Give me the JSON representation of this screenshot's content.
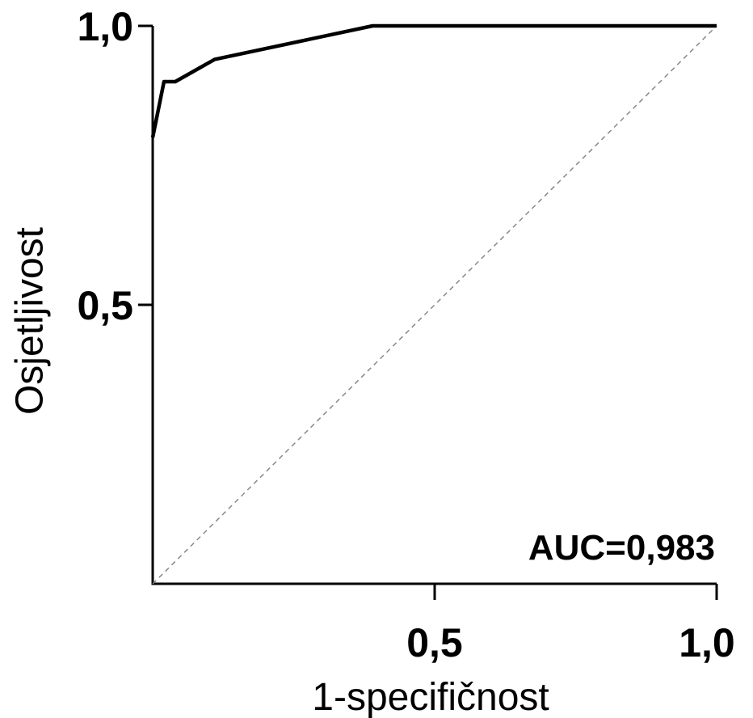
{
  "chart_data": {
    "type": "line",
    "xlabel": "1-specifičnost",
    "ylabel": "Osjetljivost",
    "xlim": [
      0,
      1
    ],
    "ylim": [
      0,
      1
    ],
    "x_ticks": [
      0.5,
      1.0
    ],
    "x_tick_labels": [
      "0,5",
      "1,0"
    ],
    "y_ticks": [
      0.5,
      1.0
    ],
    "y_tick_labels": [
      "0,5",
      "1,0"
    ],
    "grid": false,
    "annotation": "AUC=0,983",
    "series": [
      {
        "x": [
          0.0,
          0.02,
          0.04,
          0.11,
          0.39,
          1.0
        ],
        "y": [
          0.8,
          0.9,
          0.9,
          0.94,
          1.0,
          1.0
        ]
      }
    ],
    "reference_line": {
      "x": [
        0,
        1
      ],
      "y": [
        0,
        1
      ],
      "style": "dashed"
    },
    "colors": {
      "curve": "#000000",
      "reference": "#888888",
      "axis": "#000000"
    }
  }
}
